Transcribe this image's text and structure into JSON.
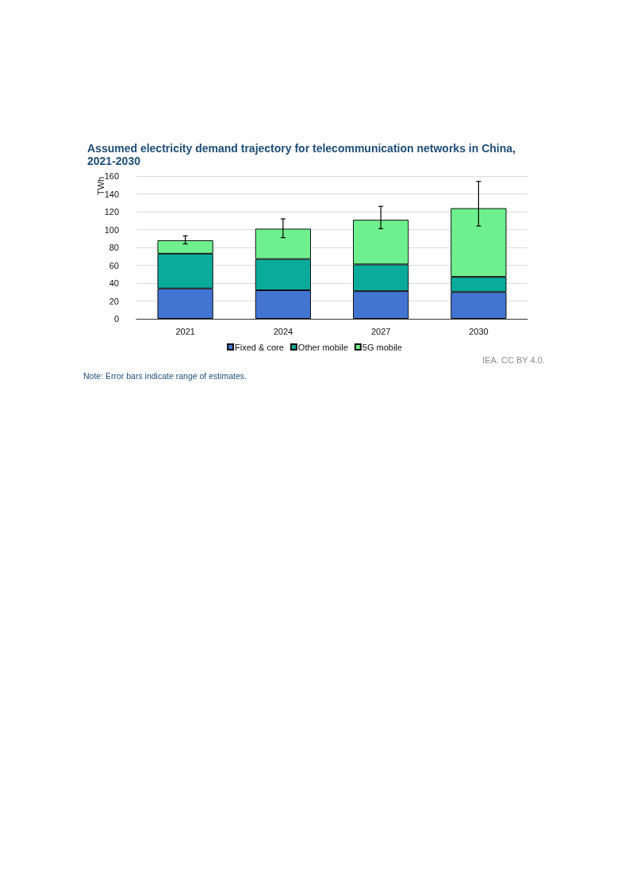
{
  "chart_data": {
    "type": "bar",
    "title": "Assumed electricity demand trajectory for telecommunication networks in China, 2021-2030",
    "ylabel": "TWh",
    "categories": [
      "2021",
      "2024",
      "2027",
      "2030"
    ],
    "stacked": true,
    "series": [
      {
        "name": "Fixed & core",
        "color": "#4274d2",
        "values": [
          34,
          32,
          31,
          30
        ]
      },
      {
        "name": "Other mobile",
        "color": "#0aab9b",
        "values": [
          39,
          35,
          30,
          17
        ]
      },
      {
        "name": "5G mobile",
        "color": "#6ef08e",
        "values": [
          15,
          34,
          50,
          77
        ],
        "errors": [
          [
            84,
            93
          ],
          [
            91,
            112
          ],
          [
            101,
            126
          ],
          [
            104,
            154
          ]
        ]
      }
    ],
    "ylim": [
      0,
      160
    ],
    "yticks": [
      0,
      20,
      40,
      60,
      80,
      100,
      120,
      140,
      160
    ],
    "grid": "y",
    "legend": "bottom",
    "annotations": [
      "IEA. CC BY 4.0.",
      "Note: Error bars indicate range of estimates."
    ]
  }
}
